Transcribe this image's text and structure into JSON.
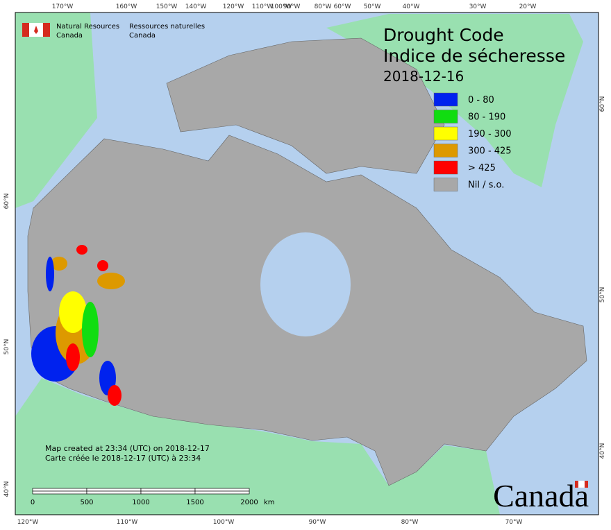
{
  "header": {
    "title_en": "Drought Code",
    "title_fr": "Indice de sécheresse",
    "date": "2018-12-16"
  },
  "logo": {
    "line1_en": "Natural Resources",
    "line2_en": "Canada",
    "line1_fr": "Ressources naturelles",
    "line2_fr": "Canada"
  },
  "legend": [
    {
      "label": "0 - 80",
      "color": "#0022ee"
    },
    {
      "label": "80 - 190",
      "color": "#11dd11"
    },
    {
      "label": "190 - 300",
      "color": "#ffff00"
    },
    {
      "label": "300 - 425",
      "color": "#dd9900"
    },
    {
      "label": "> 425",
      "color": "#ff0000"
    },
    {
      "label": "Nil / s.o.",
      "color": "#a8a8a8"
    }
  ],
  "notes": [
    "Map created at 23:34 (UTC) on 2018-12-17",
    "Carte créée le 2018-12-17 (UTC) à 23:34"
  ],
  "scale": {
    "labels": [
      "0",
      "500",
      "1000",
      "1500",
      "2000"
    ],
    "unit": "km"
  },
  "wordmark": "Canada",
  "graticule": {
    "top": [
      "170°W",
      "160°W",
      "150°W",
      "140°W",
      "120°W",
      "110°W",
      "100°W",
      "90°W",
      "80°W",
      "60°W",
      "50°W",
      "40°W",
      "30°W",
      "20°W"
    ],
    "bottom": [
      "120°W",
      "110°W",
      "100°W",
      "90°W",
      "80°W",
      "70°W"
    ],
    "left": [
      "60°N",
      "50°N",
      "40°N"
    ],
    "right": [
      "60°N",
      "50°N",
      "40°N"
    ]
  }
}
